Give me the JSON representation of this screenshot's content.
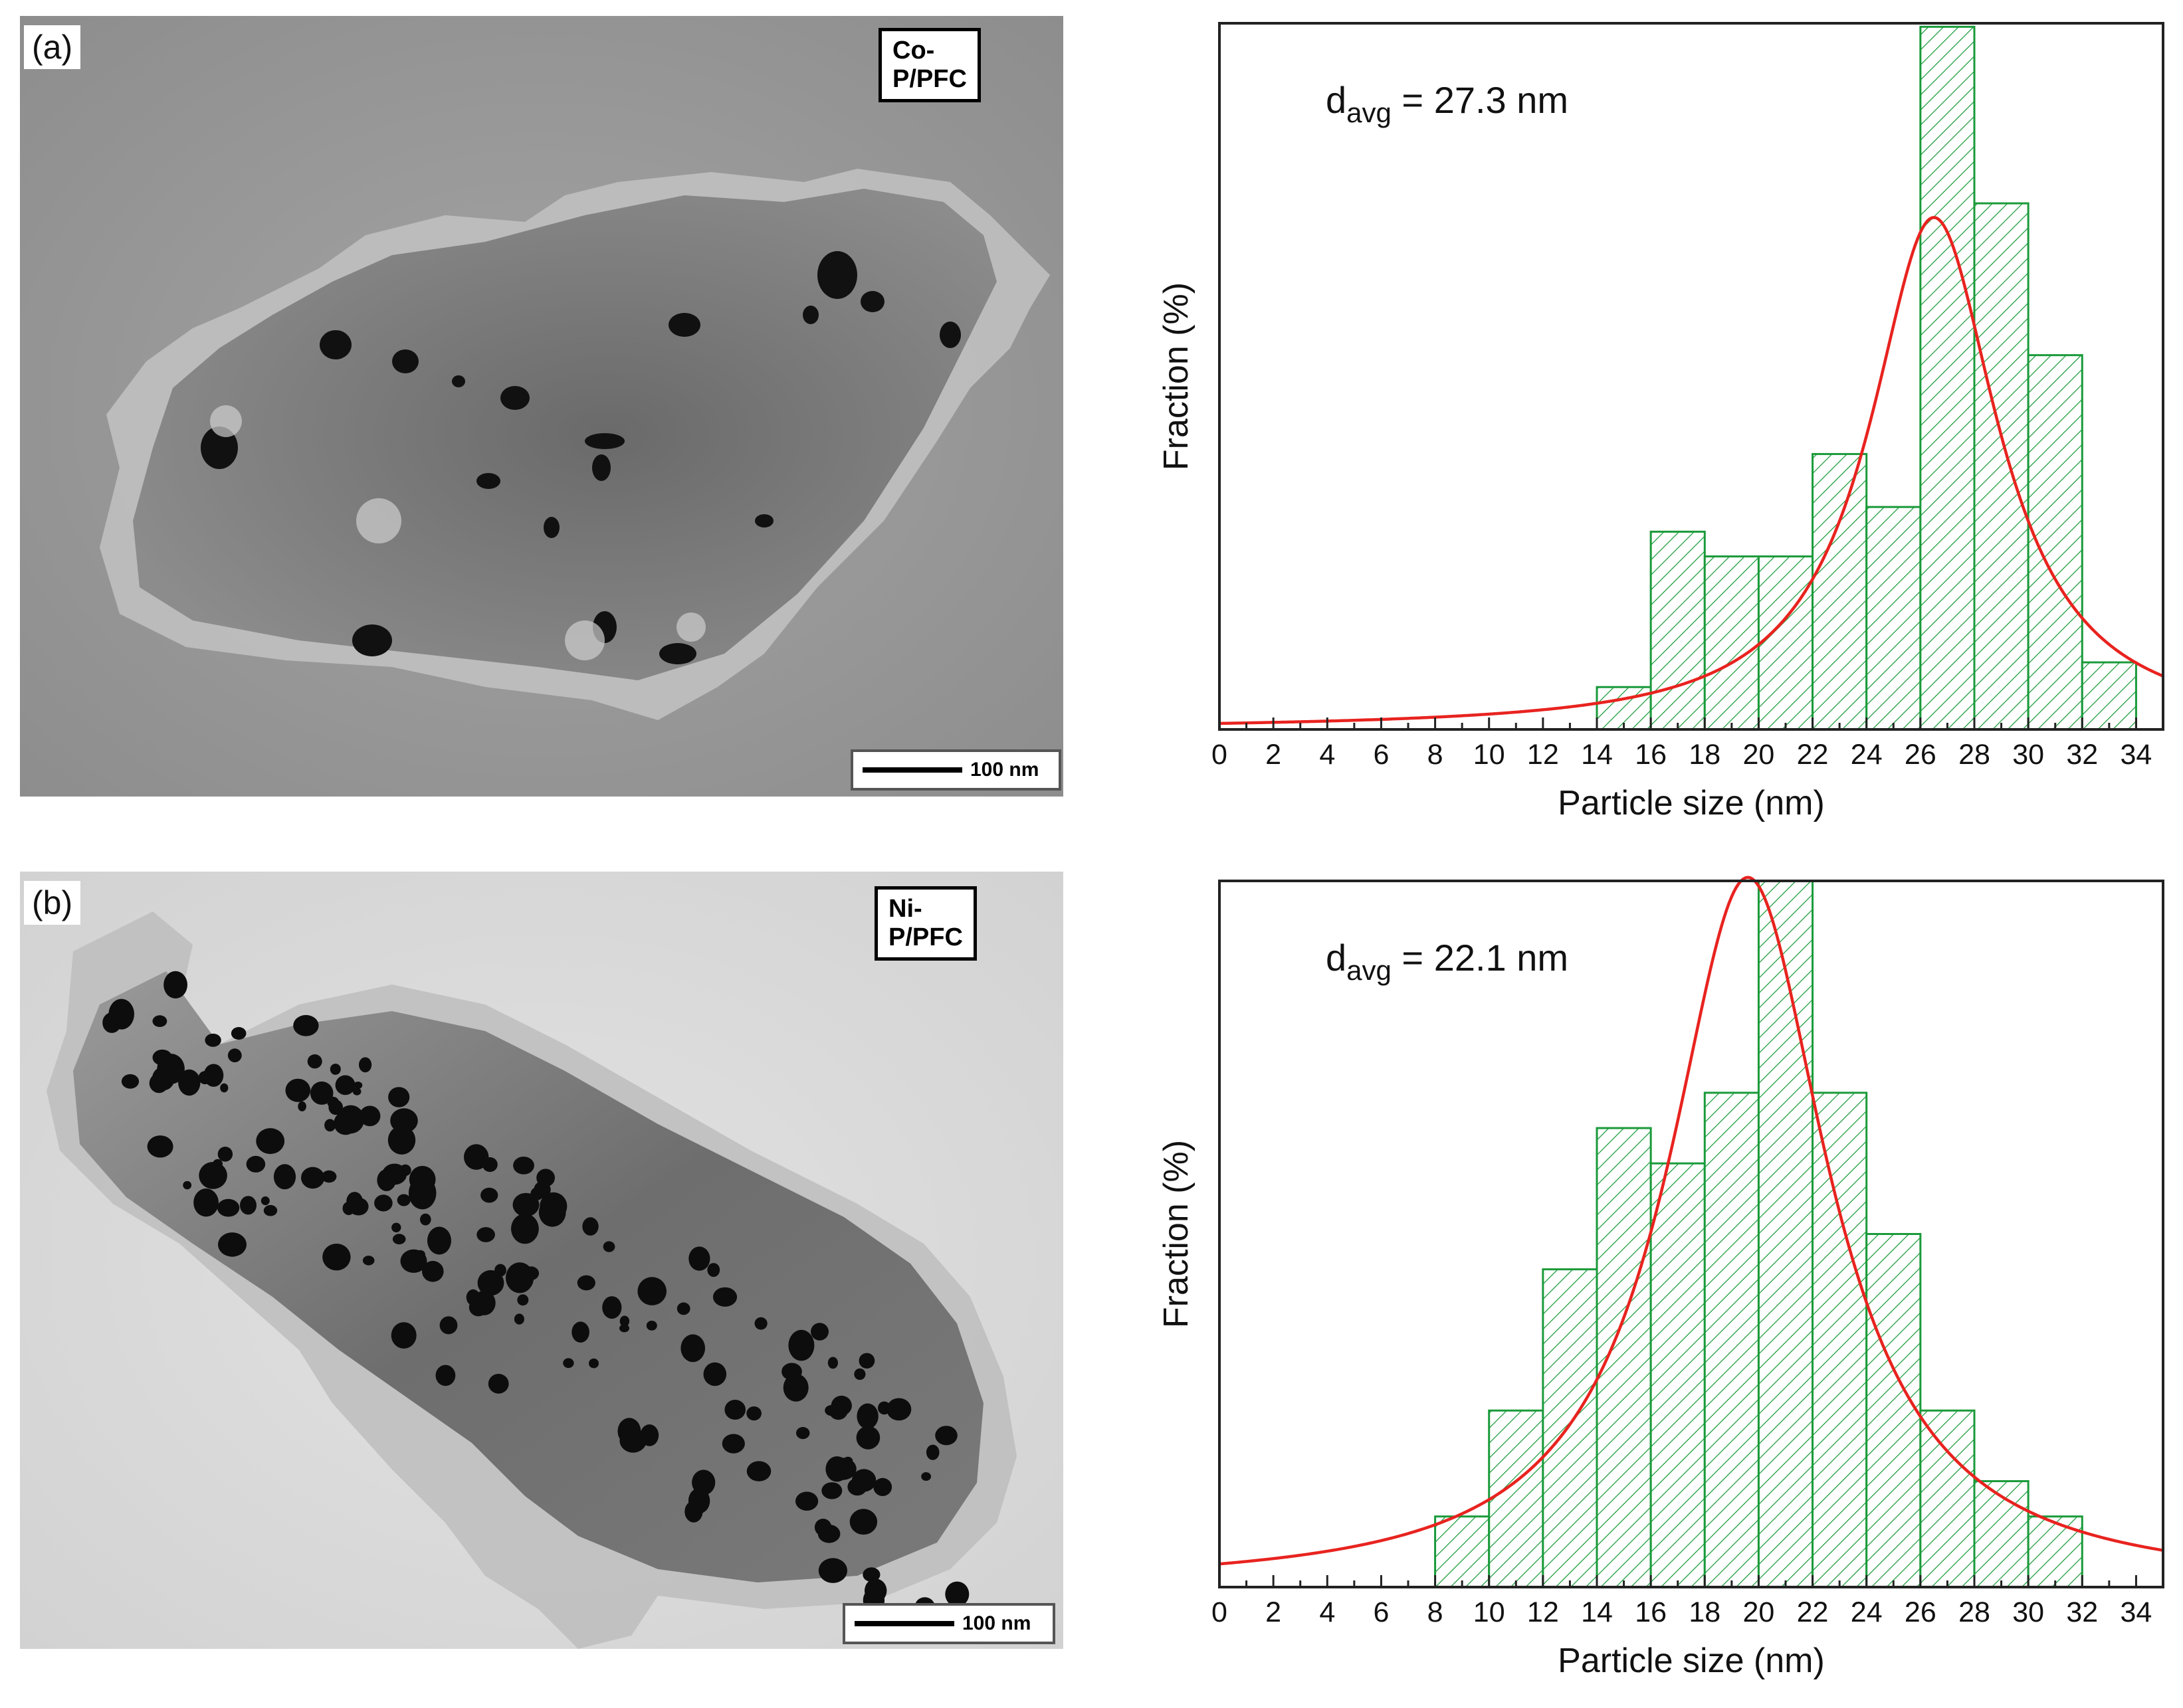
{
  "panels": [
    {
      "letter": "(a)",
      "sample": "Co-P/PFC",
      "scalebar": "100 nm",
      "tem_icon": "tem-micrograph-co-p-pfc"
    },
    {
      "letter": "(b)",
      "sample": "Ni-P/PFC",
      "scalebar": "100 nm",
      "tem_icon": "tem-micrograph-ni-p-pfc"
    }
  ],
  "colors": {
    "bar_stroke": "#1a9a3a",
    "fit_line": "#e8231f",
    "axis": "#222222"
  },
  "chart_data": [
    {
      "type": "bar",
      "title": "",
      "annotation": {
        "prefix": "d",
        "sub": "avg",
        "suffix": " = 27.3 nm"
      },
      "xlabel": "Particle size (nm)",
      "ylabel": "Fraction (%)",
      "xlim": [
        0,
        35
      ],
      "ylim": [
        0,
        20
      ],
      "xticks": [
        0,
        2,
        4,
        6,
        8,
        10,
        12,
        14,
        16,
        18,
        20,
        22,
        24,
        26,
        28,
        30,
        32,
        34
      ],
      "bin_width": 2,
      "bins": [
        {
          "start": 14,
          "value": 1.2
        },
        {
          "start": 16,
          "value": 5.6
        },
        {
          "start": 18,
          "value": 4.9
        },
        {
          "start": 20,
          "value": 4.9
        },
        {
          "start": 22,
          "value": 7.8
        },
        {
          "start": 24,
          "value": 6.3
        },
        {
          "start": 26,
          "value": 19.9
        },
        {
          "start": 28,
          "value": 14.9
        },
        {
          "start": 30,
          "value": 10.6
        },
        {
          "start": 32,
          "value": 1.9
        }
      ],
      "fit": {
        "type": "lorentzian",
        "center": 26.5,
        "width": 2.9,
        "peak": 14.5,
        "baseline": 0
      }
    },
    {
      "type": "bar",
      "title": "",
      "annotation": {
        "prefix": "d",
        "sub": "avg",
        "suffix": " = 22.1 nm"
      },
      "xlabel": "Particle size (nm)",
      "ylabel": "Fraction (%)",
      "xlim": [
        0,
        35
      ],
      "ylim": [
        0,
        20
      ],
      "xticks": [
        0,
        2,
        4,
        6,
        8,
        10,
        12,
        14,
        16,
        18,
        20,
        22,
        24,
        26,
        28,
        30,
        32,
        34
      ],
      "bin_width": 2,
      "bins": [
        {
          "start": 8,
          "value": 2.0
        },
        {
          "start": 10,
          "value": 5.0
        },
        {
          "start": 12,
          "value": 9.0
        },
        {
          "start": 14,
          "value": 13.0
        },
        {
          "start": 16,
          "value": 12.0
        },
        {
          "start": 18,
          "value": 14.0
        },
        {
          "start": 20,
          "value": 20.0
        },
        {
          "start": 22,
          "value": 14.0
        },
        {
          "start": 24,
          "value": 10.0
        },
        {
          "start": 26,
          "value": 5.0
        },
        {
          "start": 28,
          "value": 3.0
        },
        {
          "start": 30,
          "value": 2.0
        }
      ],
      "fit": {
        "type": "lorentzian",
        "center": 19.6,
        "width": 3.6,
        "peak": 20.1,
        "baseline": 0
      }
    }
  ]
}
